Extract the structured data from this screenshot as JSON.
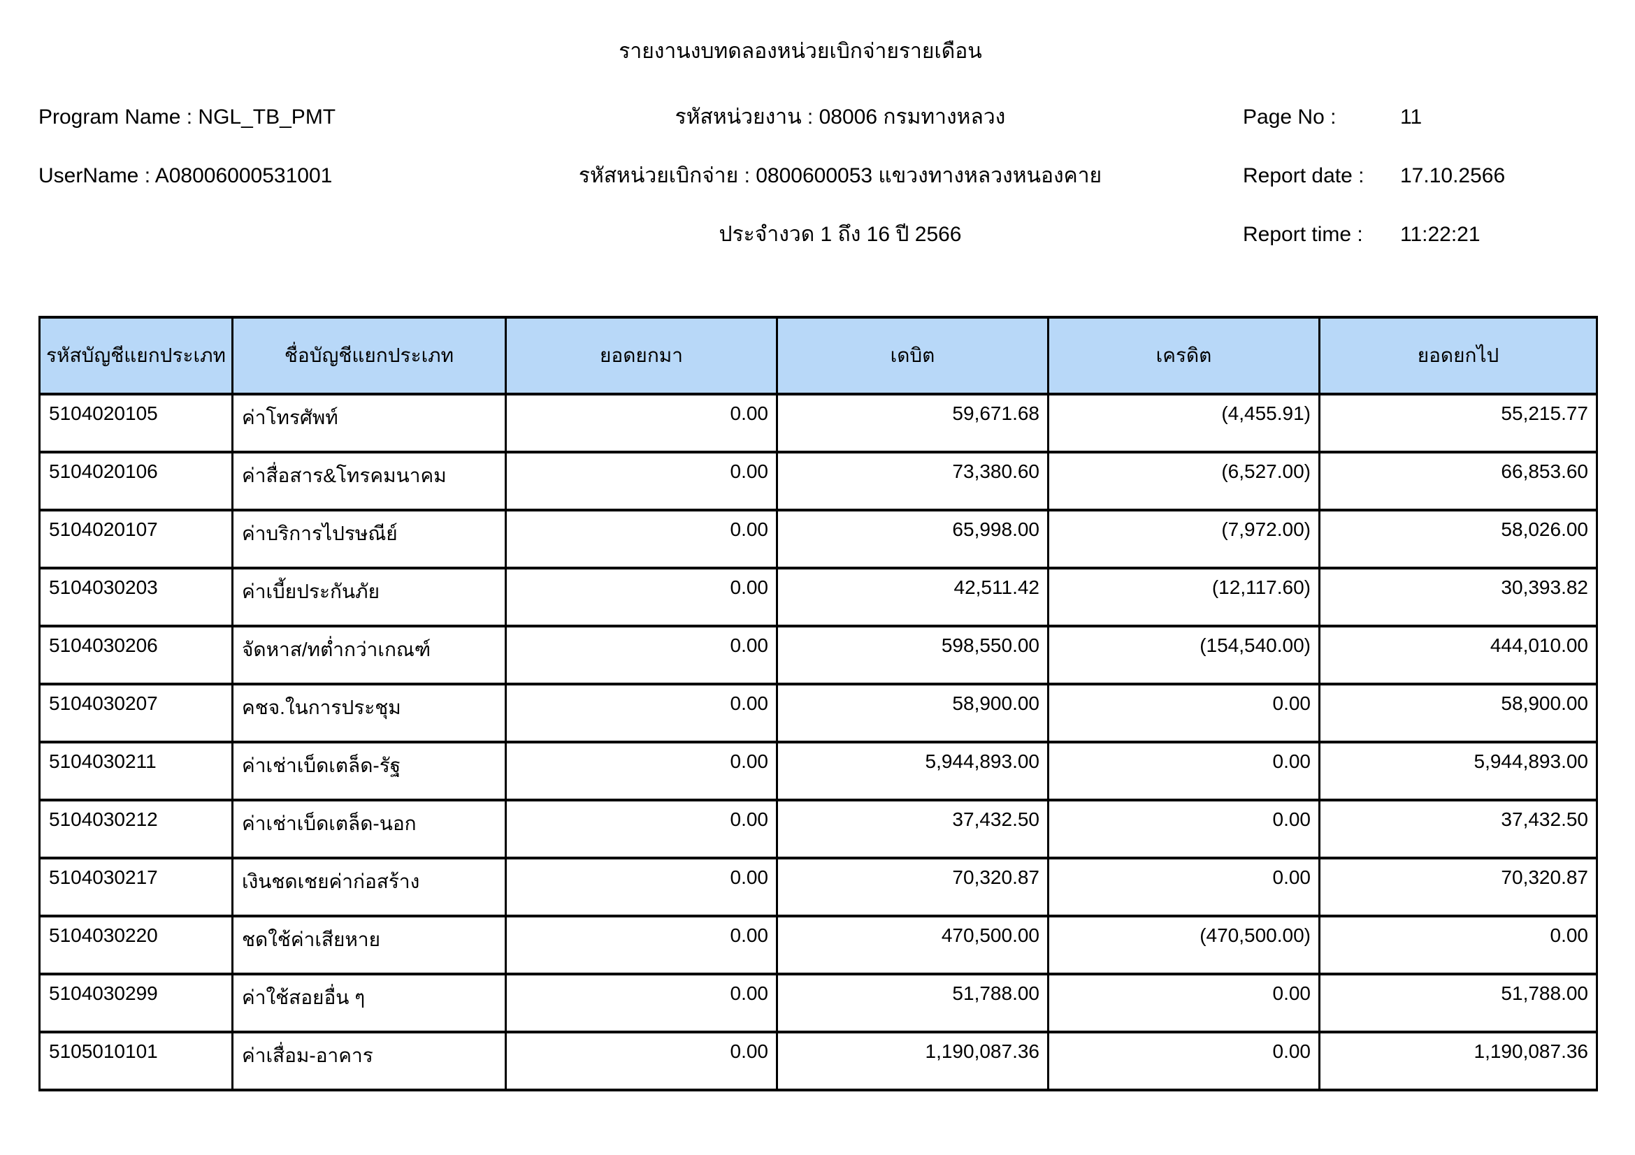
{
  "report": {
    "title": "รายงานงบทดลองหน่วยเบิกจ่ายรายเดือน",
    "program_name": {
      "label": "Program Name :",
      "value": "NGL_TB_PMT"
    },
    "user_name": {
      "label": "UserName :",
      "value": "A08006000531001"
    },
    "agency_code": {
      "label": "รหัสหน่วยงาน :",
      "value": "08006 กรมทางหลวง"
    },
    "disbursement_unit": {
      "label": "รหัสหน่วยเบิกจ่าย :",
      "value": "0800600053 แขวงทางหลวงหนองคาย"
    },
    "period": "ประจำงวด 1 ถึง 16 ปี 2566",
    "page_no": {
      "label": "Page No :",
      "value": "11"
    },
    "report_date": {
      "label": "Report date :",
      "value": "17.10.2566"
    },
    "report_time": {
      "label": "Report time :",
      "value": "11:22:21"
    }
  },
  "table": {
    "header_bg": "#b8d8f8",
    "columns": [
      "รหัสบัญชีแยกประเภท",
      "ชื่อบัญชีแยกประเภท",
      "ยอดยกมา",
      "เดบิต",
      "เครดิต",
      "ยอดยกไป"
    ],
    "rows": [
      {
        "code": "5104020105",
        "name": "ค่าโทรศัพท์",
        "brought_forward": "0.00",
        "debit": "59,671.68",
        "credit": "(4,455.91)",
        "carried_forward": "55,215.77"
      },
      {
        "code": "5104020106",
        "name": "ค่าสื่อสาร&โทรคมนาคม",
        "brought_forward": "0.00",
        "debit": "73,380.60",
        "credit": "(6,527.00)",
        "carried_forward": "66,853.60"
      },
      {
        "code": "5104020107",
        "name": "ค่าบริการไปรษณีย์",
        "brought_forward": "0.00",
        "debit": "65,998.00",
        "credit": "(7,972.00)",
        "carried_forward": "58,026.00"
      },
      {
        "code": "5104030203",
        "name": "ค่าเบี้ยประกันภัย",
        "brought_forward": "0.00",
        "debit": "42,511.42",
        "credit": "(12,117.60)",
        "carried_forward": "30,393.82"
      },
      {
        "code": "5104030206",
        "name": "จัดหาส/ทต่ำกว่าเกณฑ์",
        "brought_forward": "0.00",
        "debit": "598,550.00",
        "credit": "(154,540.00)",
        "carried_forward": "444,010.00"
      },
      {
        "code": "5104030207",
        "name": "คชจ.ในการประชุม",
        "brought_forward": "0.00",
        "debit": "58,900.00",
        "credit": "0.00",
        "carried_forward": "58,900.00"
      },
      {
        "code": "5104030211",
        "name": "ค่าเช่าเบ็ดเตล็ด-รัฐ",
        "brought_forward": "0.00",
        "debit": "5,944,893.00",
        "credit": "0.00",
        "carried_forward": "5,944,893.00"
      },
      {
        "code": "5104030212",
        "name": "ค่าเช่าเบ็ดเตล็ด-นอก",
        "brought_forward": "0.00",
        "debit": "37,432.50",
        "credit": "0.00",
        "carried_forward": "37,432.50"
      },
      {
        "code": "5104030217",
        "name": "เงินชดเชยค่าก่อสร้าง",
        "brought_forward": "0.00",
        "debit": "70,320.87",
        "credit": "0.00",
        "carried_forward": "70,320.87"
      },
      {
        "code": "5104030220",
        "name": "ชดใช้ค่าเสียหาย",
        "brought_forward": "0.00",
        "debit": "470,500.00",
        "credit": "(470,500.00)",
        "carried_forward": "0.00"
      },
      {
        "code": "5104030299",
        "name": "ค่าใช้สอยอื่น ๆ",
        "brought_forward": "0.00",
        "debit": "51,788.00",
        "credit": "0.00",
        "carried_forward": "51,788.00"
      },
      {
        "code": "5105010101",
        "name": "ค่าเสื่อม-อาคาร",
        "brought_forward": "0.00",
        "debit": "1,190,087.36",
        "credit": "0.00",
        "carried_forward": "1,190,087.36"
      }
    ]
  }
}
